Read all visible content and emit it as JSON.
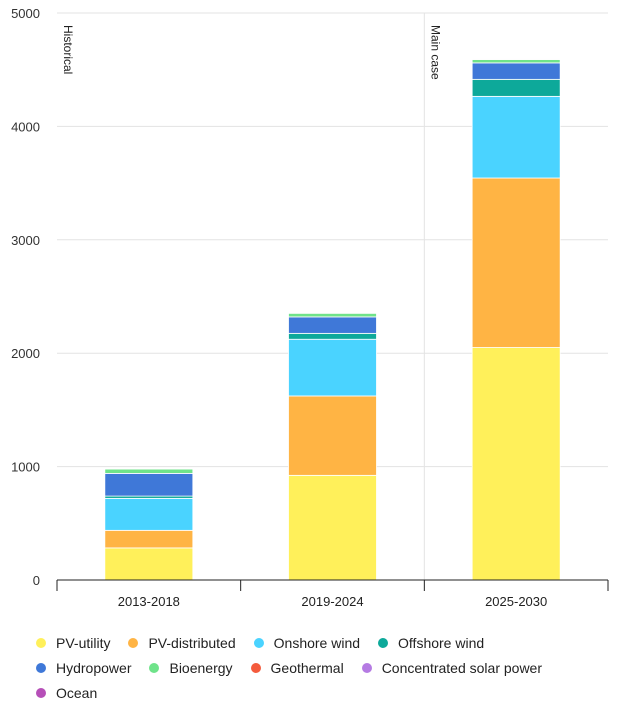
{
  "chart_data": {
    "type": "bar",
    "stacked": true,
    "categories": [
      "2013-2018",
      "2019-2024",
      "2025-2030"
    ],
    "ylim": [
      0,
      5000
    ],
    "yticks": [
      0,
      1000,
      2000,
      3000,
      4000,
      5000
    ],
    "grid": true,
    "legend_position": "bottom",
    "period_labels": [
      {
        "text": "Historical",
        "category_index": 0
      },
      {
        "text": "Main case",
        "category_index": 2
      }
    ],
    "series": [
      {
        "name": "PV-utility",
        "color": "#FFF05A",
        "values": [
          283,
          923,
          2050
        ]
      },
      {
        "name": "PV-distributed",
        "color": "#FFB444",
        "values": [
          155,
          700,
          1495
        ]
      },
      {
        "name": "Onshore wind",
        "color": "#4AD3FF",
        "values": [
          282,
          500,
          720
        ]
      },
      {
        "name": "Offshore wind",
        "color": "#0DA99A",
        "values": [
          20,
          52,
          150
        ]
      },
      {
        "name": "Hydropower",
        "color": "#3F78D8",
        "values": [
          200,
          145,
          145
        ]
      },
      {
        "name": "Bioenergy",
        "color": "#6FE38A",
        "values": [
          38,
          32,
          30
        ]
      },
      {
        "name": "Geothermal",
        "color": "#F45B3D",
        "values": [
          2,
          2,
          2
        ]
      },
      {
        "name": "Concentrated solar power",
        "color": "#B57BE3",
        "values": [
          2,
          2,
          2
        ]
      },
      {
        "name": "Ocean",
        "color": "#B64FB8",
        "values": [
          0,
          0,
          1
        ]
      }
    ]
  }
}
